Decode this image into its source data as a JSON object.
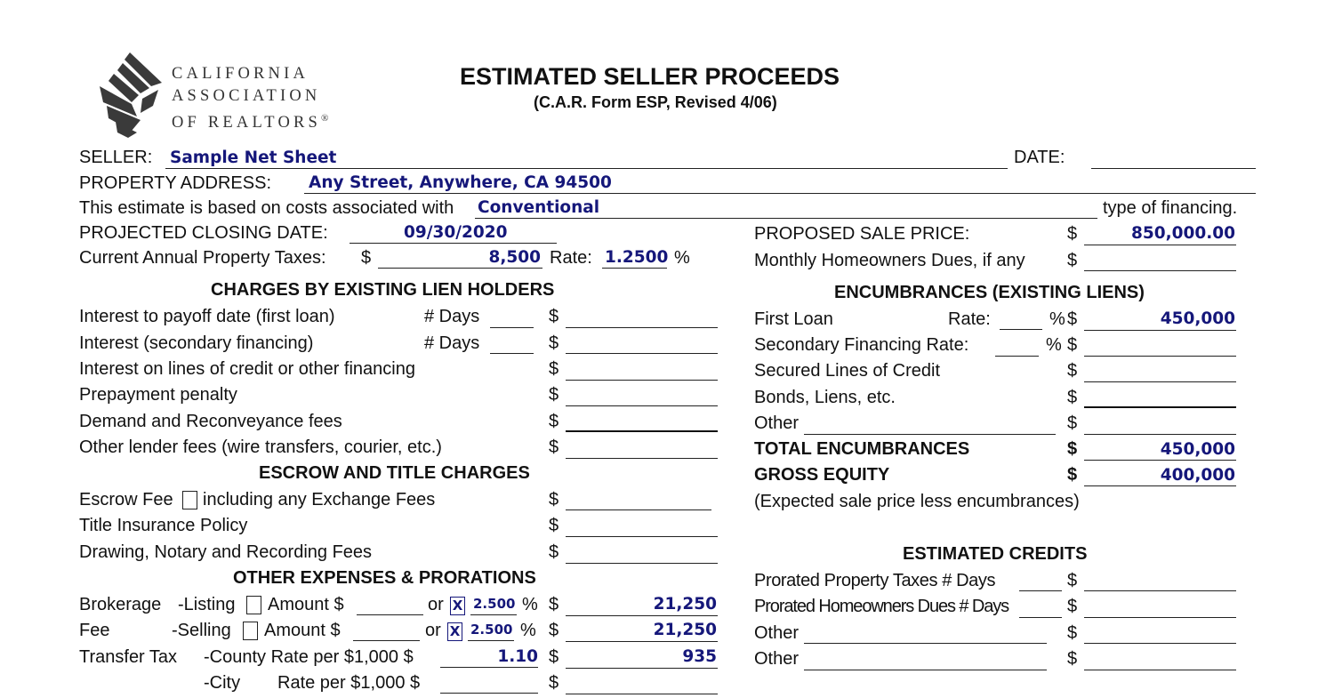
{
  "logo": {
    "line1": "CALIFORNIA",
    "line2": "ASSOCIATION",
    "line3": "OF REALTORS",
    "reg": "®"
  },
  "header": {
    "title": "ESTIMATED SELLER PROCEEDS",
    "subtitle": "(C.A.R. Form ESP, Revised 4/06)"
  },
  "seller": {
    "label": "SELLER:",
    "value": "Sample Net Sheet"
  },
  "date": {
    "label": "DATE:",
    "value": ""
  },
  "property": {
    "label": "PROPERTY  ADDRESS:",
    "value": "Any Street, Anywhere, CA  94500"
  },
  "financing": {
    "prefix": "This estimate is based on costs associated with",
    "value": "Conventional",
    "suffix": "type of financing."
  },
  "closing": {
    "label": "PROJECTED CLOSING DATE:",
    "value": "09/30/2020"
  },
  "taxes": {
    "label": "Current Annual Property Taxes:",
    "currency": "$",
    "value": "8,500",
    "rate_label": "Rate:",
    "rate_value": "1.2500",
    "percent": "%"
  },
  "sale_price": {
    "label": "PROPOSED SALE PRICE:",
    "currency": "$",
    "value": "850,000.00"
  },
  "hoa": {
    "label": "Monthly Homeowners Dues, if any",
    "currency": "$",
    "value": ""
  },
  "lien_section": {
    "heading": "CHARGES BY EXISTING LIEN HOLDERS",
    "days_label": "# Days",
    "rows": [
      {
        "label": "Interest to payoff date (first loan)",
        "currency": "$",
        "value": ""
      },
      {
        "label": "Interest (secondary financing)",
        "currency": "$",
        "value": ""
      },
      {
        "label": "Interest on lines of credit or other financing",
        "currency": "$",
        "value": ""
      },
      {
        "label": "Prepayment penalty",
        "currency": "$",
        "value": ""
      },
      {
        "label": "Demand and Reconveyance fees",
        "currency": "$",
        "value": ""
      },
      {
        "label": "Other lender fees (wire transfers, courier, etc.)",
        "currency": "$",
        "value": ""
      }
    ]
  },
  "escrow_section": {
    "heading": "ESCROW AND TITLE CHARGES",
    "escrow_fee_prefix": "Escrow Fee",
    "escrow_fee_suffix": "including any Exchange Fees",
    "rows": [
      {
        "label": "Title Insurance Policy",
        "currency": "$",
        "value": ""
      },
      {
        "label": "Drawing, Notary and Recording Fees",
        "currency": "$",
        "value": ""
      }
    ],
    "currency": "$"
  },
  "other_section": {
    "heading": "OTHER EXPENSES & PRORATIONS",
    "brokerage": "Brokerage",
    "fee": "Fee",
    "listing_label": "-Listing",
    "selling_label": "-Selling",
    "amount_label": "Amount $",
    "or_label": "or",
    "percent": "%",
    "currency": "$",
    "listing_checked_mark": "X",
    "listing_pct": "2.500",
    "listing_total": "21,250",
    "selling_checked_mark": "X",
    "selling_pct": "2.500",
    "selling_total": "21,250",
    "transfer_tax": "Transfer Tax",
    "county_label": "-County Rate per $1,000 $",
    "county_rate": "1.10",
    "county_total": "935",
    "city_label": "-City",
    "city_rate_label": "Rate per $1,000 $",
    "city_rate": "",
    "city_total": ""
  },
  "encumbrances": {
    "heading": "ENCUMBRANCES (EXISTING LIENS)",
    "first_loan": "First Loan",
    "rate_label": "Rate:",
    "first_value": "450,000",
    "secondary": "Secondary Financing Rate:",
    "secured_lines": "Secured Lines of Credit",
    "bonds": "Bonds, Liens, etc.",
    "other": "Other",
    "percent": "%",
    "currency": "$",
    "total_label": "TOTAL ENCUMBRANCES",
    "total_value": "450,000",
    "gross_label": "GROSS EQUITY",
    "gross_value": "400,000",
    "gross_note": "(Expected sale price less encumbrances)"
  },
  "credits": {
    "heading": "ESTIMATED CREDITS",
    "prorated_taxes": "Prorated Property Taxes # Days",
    "prorated_hoa": "Prorated Homeowners Dues # Days",
    "other1": "Other",
    "other2": "Other",
    "currency": "$"
  },
  "colors": {
    "field_text": "#15177a",
    "text": "#111111",
    "logo": "#3a3a3a"
  }
}
